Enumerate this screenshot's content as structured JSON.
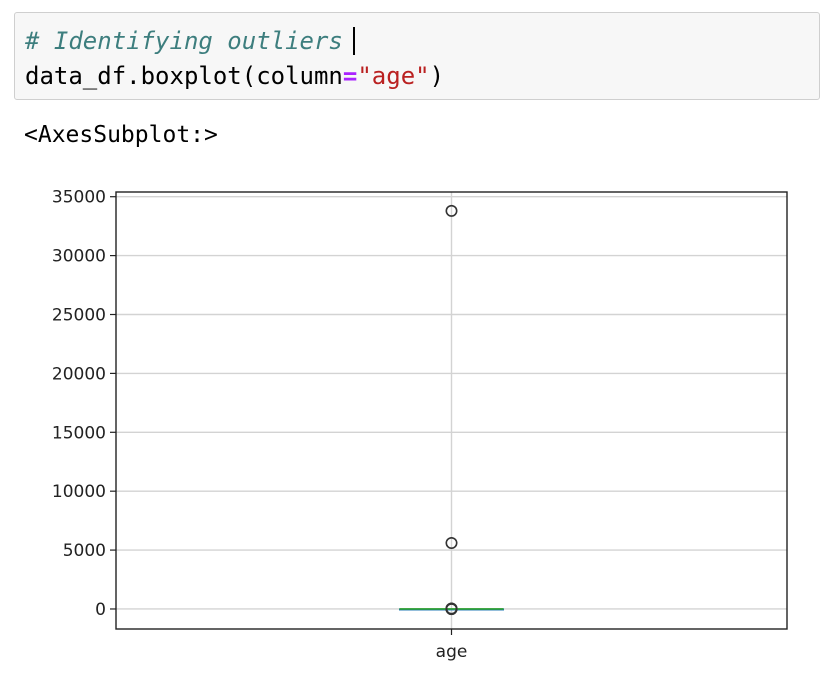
{
  "cell": {
    "comment": "# Identifying outliers",
    "code_prefix": "data_df.boxplot(column",
    "code_op": "=",
    "code_string": "\"age\"",
    "code_suffix": ")"
  },
  "output": {
    "repr": "<AxesSubplot:>"
  },
  "colors": {
    "comment": "#3d7e7e",
    "operator": "#aa22ff",
    "string": "#ba2121",
    "median": "#2ca02c"
  },
  "chart_data": {
    "type": "box",
    "categories": [
      "age"
    ],
    "ylim": [
      -1700,
      35400
    ],
    "yticks": [
      0,
      5000,
      10000,
      15000,
      20000,
      25000,
      30000,
      35000
    ],
    "ytick_labels": [
      "0",
      "5000",
      "10000",
      "15000",
      "20000",
      "25000",
      "30000",
      "35000"
    ],
    "grid": true,
    "series": [
      {
        "q1": 0,
        "median": 0,
        "q3": 0,
        "whisker_low": 0,
        "whisker_high": 0,
        "outliers": [
          33800,
          5600,
          40,
          30,
          20,
          0,
          -10
        ]
      }
    ]
  }
}
